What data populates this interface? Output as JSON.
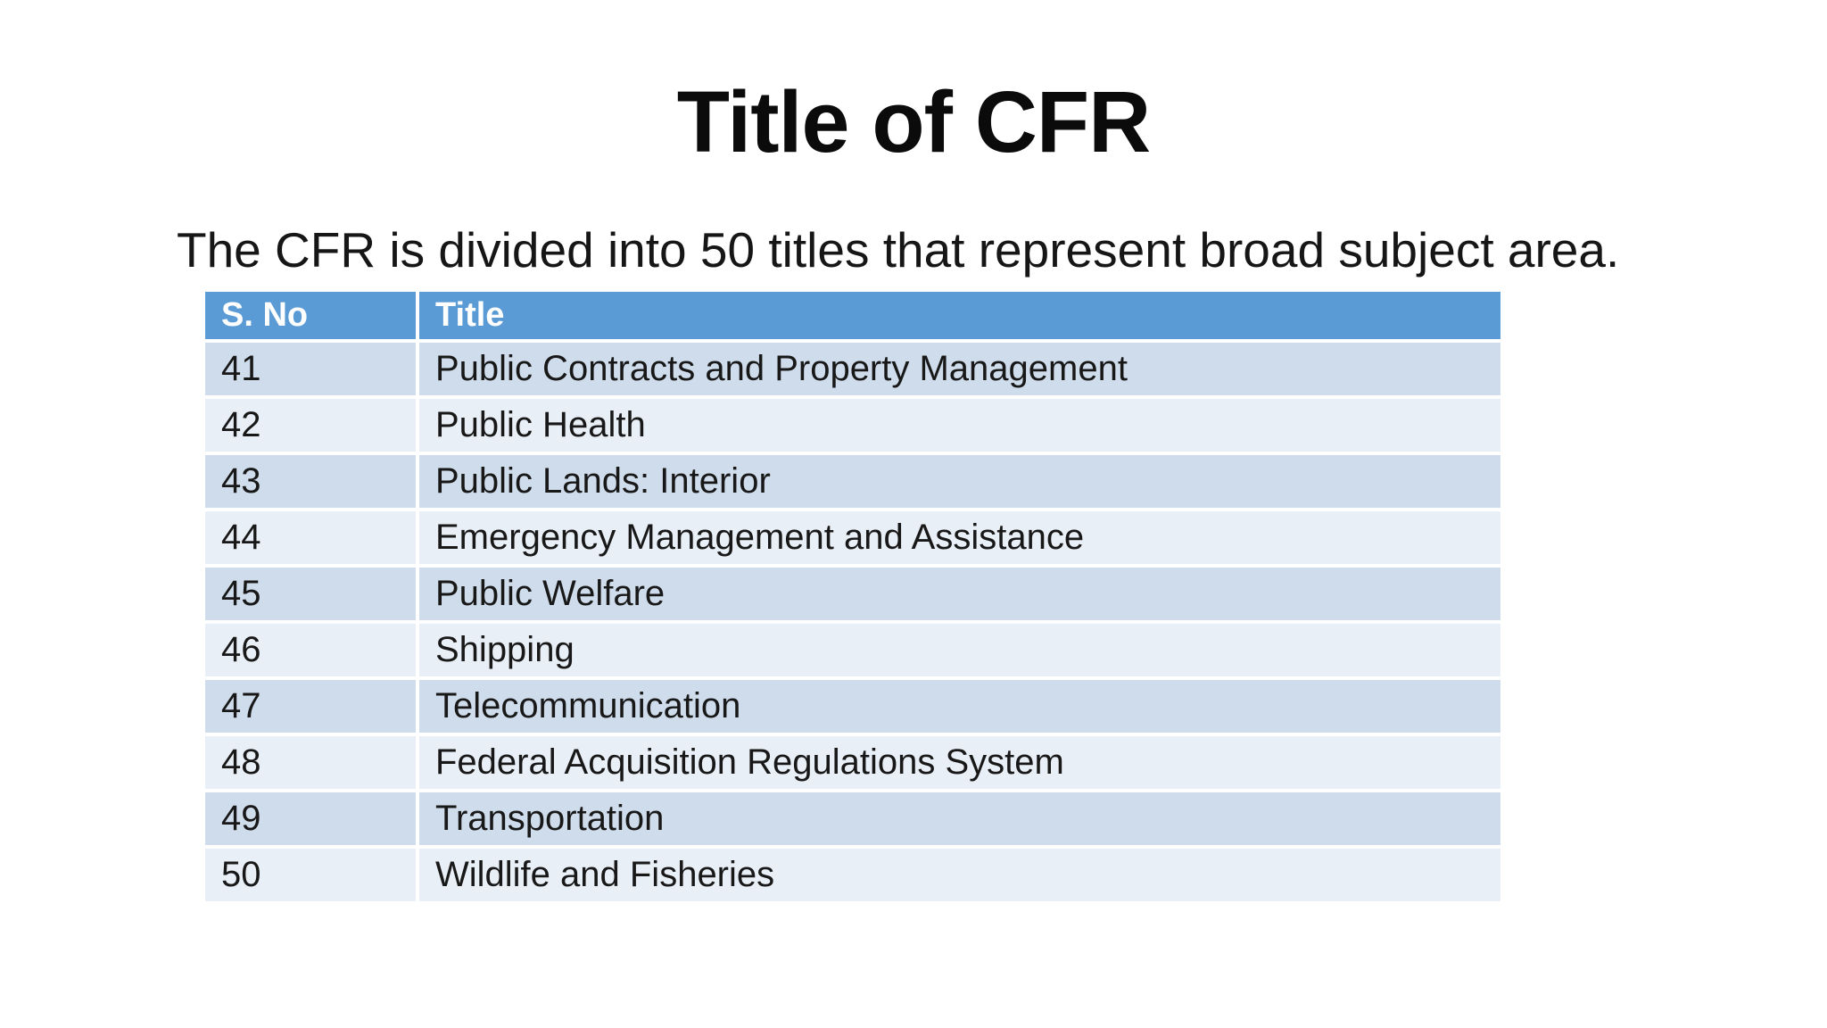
{
  "slide": {
    "title": "Title of CFR",
    "subtitle": "The CFR is divided into 50 titles that represent broad subject area."
  },
  "table": {
    "columns": [
      "S. No",
      "Title"
    ],
    "rows": [
      {
        "no": "41",
        "title": "Public Contracts and Property Management"
      },
      {
        "no": "42",
        "title": "Public Health"
      },
      {
        "no": "43",
        "title": "Public Lands: Interior"
      },
      {
        "no": "44",
        "title": "Emergency Management and Assistance"
      },
      {
        "no": "45",
        "title": "Public Welfare"
      },
      {
        "no": "46",
        "title": "Shipping"
      },
      {
        "no": "47",
        "title": "Telecommunication"
      },
      {
        "no": "48",
        "title": "Federal Acquisition Regulations System"
      },
      {
        "no": "49",
        "title": "Transportation"
      },
      {
        "no": "50",
        "title": "Wildlife and Fisheries"
      }
    ]
  },
  "colors": {
    "header_bg": "#5B9BD5",
    "header_text": "#FFFFFF",
    "row_dark": "#CFDCEB",
    "row_light": "#E9EFF6",
    "body_text": "#181818"
  }
}
